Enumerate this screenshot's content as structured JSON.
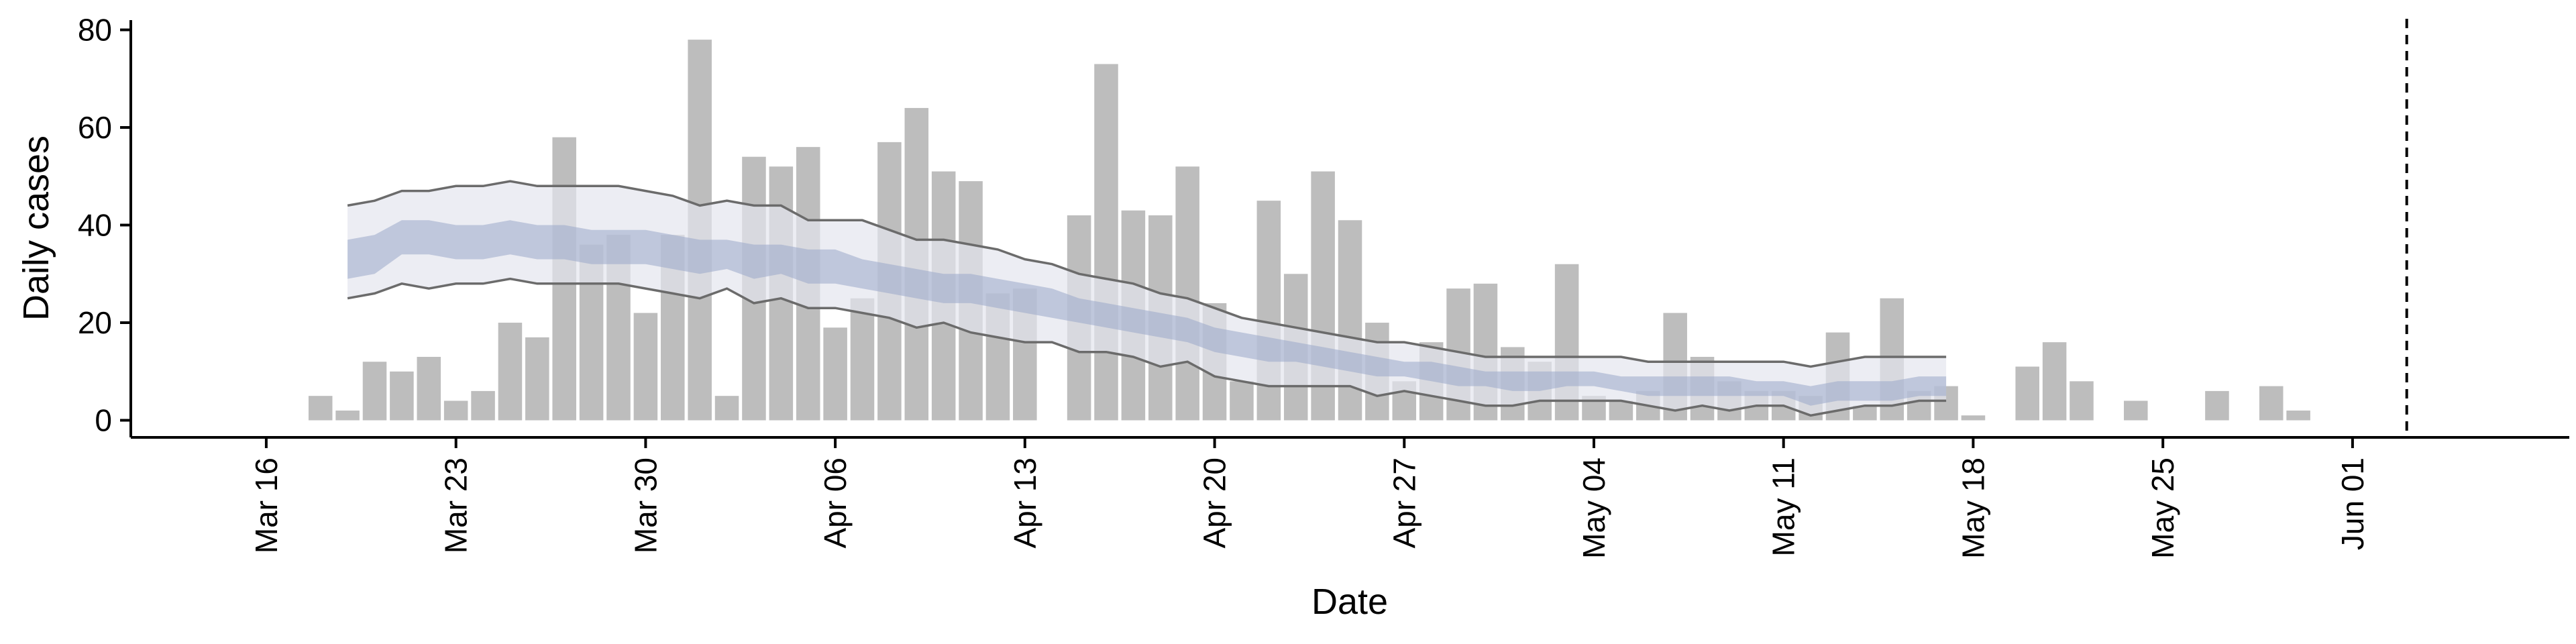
{
  "chart_data": {
    "type": "bar",
    "title": "",
    "xlabel": "Date",
    "ylabel": "Daily cases",
    "ylim": [
      -3.5,
      82
    ],
    "xlim": [
      "2020-03-11",
      "2020-06-09"
    ],
    "yticks": [
      0,
      20,
      40,
      60,
      80
    ],
    "xticks": [
      {
        "date": "2020-03-16",
        "label": "Mar 16"
      },
      {
        "date": "2020-03-23",
        "label": "Mar 23"
      },
      {
        "date": "2020-03-30",
        "label": "Mar 30"
      },
      {
        "date": "2020-04-06",
        "label": "Apr 06"
      },
      {
        "date": "2020-04-13",
        "label": "Apr 13"
      },
      {
        "date": "2020-04-20",
        "label": "Apr 20"
      },
      {
        "date": "2020-04-27",
        "label": "Apr 27"
      },
      {
        "date": "2020-05-04",
        "label": "May 04"
      },
      {
        "date": "2020-05-11",
        "label": "May 11"
      },
      {
        "date": "2020-05-18",
        "label": "May 18"
      },
      {
        "date": "2020-05-25",
        "label": "May 25"
      },
      {
        "date": "2020-06-01",
        "label": "Jun 01"
      }
    ],
    "grid": false,
    "legend": "none",
    "reference_line": {
      "date": "2020-06-03",
      "style": "dashed"
    },
    "bars": {
      "dates": [
        "2020-03-18",
        "2020-03-19",
        "2020-03-20",
        "2020-03-21",
        "2020-03-22",
        "2020-03-23",
        "2020-03-24",
        "2020-03-25",
        "2020-03-26",
        "2020-03-27",
        "2020-03-28",
        "2020-03-29",
        "2020-03-30",
        "2020-03-31",
        "2020-04-01",
        "2020-04-02",
        "2020-04-03",
        "2020-04-04",
        "2020-04-05",
        "2020-04-06",
        "2020-04-07",
        "2020-04-08",
        "2020-04-09",
        "2020-04-10",
        "2020-04-11",
        "2020-04-12",
        "2020-04-13",
        "2020-04-14",
        "2020-04-15",
        "2020-04-16",
        "2020-04-17",
        "2020-04-18",
        "2020-04-19",
        "2020-04-20",
        "2020-04-21",
        "2020-04-22",
        "2020-04-23",
        "2020-04-24",
        "2020-04-25",
        "2020-04-26",
        "2020-04-27",
        "2020-04-28",
        "2020-04-29",
        "2020-04-30",
        "2020-05-01",
        "2020-05-02",
        "2020-05-03",
        "2020-05-04",
        "2020-05-05",
        "2020-05-06",
        "2020-05-07",
        "2020-05-08",
        "2020-05-09",
        "2020-05-10",
        "2020-05-11",
        "2020-05-12",
        "2020-05-13",
        "2020-05-14",
        "2020-05-15",
        "2020-05-16",
        "2020-05-17",
        "2020-05-18",
        "2020-05-19",
        "2020-05-20",
        "2020-05-21",
        "2020-05-22",
        "2020-05-23",
        "2020-05-24",
        "2020-05-25",
        "2020-05-26",
        "2020-05-27",
        "2020-05-28",
        "2020-05-29",
        "2020-05-30",
        "2020-05-31"
      ],
      "values": [
        5,
        2,
        12,
        10,
        13,
        4,
        6,
        20,
        17,
        58,
        36,
        38,
        22,
        38,
        78,
        5,
        54,
        52,
        56,
        19,
        25,
        57,
        64,
        51,
        49,
        26,
        27,
        0,
        42,
        73,
        43,
        42,
        52,
        24,
        8,
        45,
        30,
        51,
        41,
        20,
        8,
        16,
        27,
        28,
        15,
        12,
        32,
        5,
        4,
        6,
        22,
        13,
        8,
        6,
        6,
        5,
        18,
        3,
        25,
        6,
        7,
        1,
        0,
        11,
        16,
        8,
        0,
        4,
        0,
        0,
        6,
        0,
        7,
        2,
        0
      ],
      "color": "#bdbdbd"
    },
    "band_dates": [
      "2020-03-19",
      "2020-03-20",
      "2020-03-21",
      "2020-03-22",
      "2020-03-23",
      "2020-03-24",
      "2020-03-25",
      "2020-03-26",
      "2020-03-27",
      "2020-03-28",
      "2020-03-29",
      "2020-03-30",
      "2020-03-31",
      "2020-04-01",
      "2020-04-02",
      "2020-04-03",
      "2020-04-04",
      "2020-04-05",
      "2020-04-06",
      "2020-04-07",
      "2020-04-08",
      "2020-04-09",
      "2020-04-10",
      "2020-04-11",
      "2020-04-12",
      "2020-04-13",
      "2020-04-14",
      "2020-04-15",
      "2020-04-16",
      "2020-04-17",
      "2020-04-18",
      "2020-04-19",
      "2020-04-20",
      "2020-04-21",
      "2020-04-22",
      "2020-04-23",
      "2020-04-24",
      "2020-04-25",
      "2020-04-26",
      "2020-04-27",
      "2020-04-28",
      "2020-04-29",
      "2020-04-30",
      "2020-05-01",
      "2020-05-02",
      "2020-05-03",
      "2020-05-04",
      "2020-05-05",
      "2020-05-06",
      "2020-05-07",
      "2020-05-08",
      "2020-05-09",
      "2020-05-10",
      "2020-05-11",
      "2020-05-12",
      "2020-05-13",
      "2020-05-14",
      "2020-05-15",
      "2020-05-16",
      "2020-05-17"
    ],
    "outer_band": {
      "upper": [
        44,
        45,
        47,
        47,
        48,
        48,
        49,
        48,
        48,
        48,
        48,
        47,
        46,
        44,
        45,
        44,
        44,
        41,
        41,
        41,
        39,
        37,
        37,
        36,
        35,
        33,
        32,
        30,
        29,
        28,
        26,
        25,
        23,
        21,
        20,
        19,
        18,
        17,
        16,
        16,
        15,
        14,
        13,
        13,
        13,
        13,
        13,
        13,
        12,
        12,
        12,
        12,
        12,
        12,
        11,
        12,
        13,
        13,
        13,
        13
      ],
      "lower": [
        25,
        26,
        28,
        27,
        28,
        28,
        29,
        28,
        28,
        28,
        28,
        27,
        26,
        25,
        27,
        24,
        25,
        23,
        23,
        22,
        21,
        19,
        20,
        18,
        17,
        16,
        16,
        14,
        14,
        13,
        11,
        12,
        9,
        8,
        7,
        7,
        7,
        7,
        5,
        6,
        5,
        4,
        3,
        3,
        4,
        4,
        4,
        4,
        3,
        2,
        3,
        2,
        3,
        3,
        1,
        2,
        3,
        3,
        4,
        4
      ],
      "color": "#e4e5ee",
      "line_color": "#6b6b6b"
    },
    "inner_band": {
      "upper": [
        37,
        38,
        41,
        41,
        40,
        40,
        41,
        40,
        40,
        39,
        39,
        39,
        38,
        37,
        37,
        36,
        36,
        35,
        35,
        33,
        32,
        31,
        30,
        30,
        29,
        28,
        27,
        25,
        24,
        23,
        22,
        21,
        19,
        18,
        17,
        16,
        15,
        14,
        13,
        12,
        12,
        11,
        10,
        10,
        10,
        10,
        10,
        9,
        9,
        9,
        9,
        9,
        8,
        8,
        7,
        8,
        8,
        8,
        9,
        9
      ],
      "lower": [
        29,
        30,
        34,
        34,
        33,
        33,
        34,
        33,
        33,
        32,
        32,
        32,
        31,
        30,
        31,
        29,
        30,
        28,
        28,
        27,
        26,
        25,
        24,
        24,
        23,
        22,
        21,
        20,
        19,
        18,
        17,
        16,
        14,
        13,
        12,
        12,
        11,
        10,
        9,
        9,
        8,
        7,
        7,
        6,
        6,
        7,
        7,
        6,
        5,
        5,
        5,
        5,
        5,
        5,
        3,
        4,
        4,
        4,
        5,
        5
      ],
      "color": "#9aa7c8"
    }
  }
}
